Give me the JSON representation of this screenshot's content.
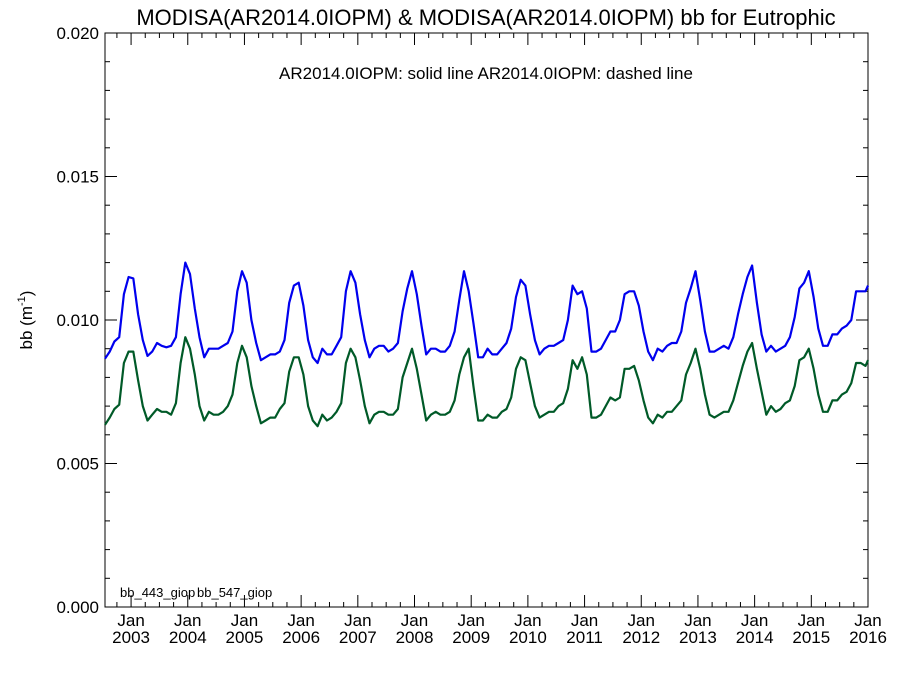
{
  "chart_data": {
    "type": "line",
    "title": "MODISA(AR2014.0IOPM) & MODISA(AR2014.0IOPM)  bb for Eutrophic",
    "subtitle": "AR2014.0IOPM: solid line   AR2014.0IOPM: dashed line",
    "ylabel": "bb (m",
    "ylabel_sup": "-1",
    "ylabel_close": ")",
    "xlabel": "",
    "ylim": [
      0.0,
      0.02
    ],
    "xlim": [
      2002.54,
      2016.0
    ],
    "yticks": [
      "0.000",
      "0.005",
      "0.010",
      "0.015",
      "0.020"
    ],
    "xticks": [
      {
        "year": 2003,
        "label1": "Jan",
        "label2": "2003"
      },
      {
        "year": 2004,
        "label1": "Jan",
        "label2": "2004"
      },
      {
        "year": 2005,
        "label1": "Jan",
        "label2": "2005"
      },
      {
        "year": 2006,
        "label1": "Jan",
        "label2": "2006"
      },
      {
        "year": 2007,
        "label1": "Jan",
        "label2": "2007"
      },
      {
        "year": 2008,
        "label1": "Jan",
        "label2": "2008"
      },
      {
        "year": 2009,
        "label1": "Jan",
        "label2": "2009"
      },
      {
        "year": 2010,
        "label1": "Jan",
        "label2": "2010"
      },
      {
        "year": 2011,
        "label1": "Jan",
        "label2": "2011"
      },
      {
        "year": 2012,
        "label1": "Jan",
        "label2": "2012"
      },
      {
        "year": 2013,
        "label1": "Jan",
        "label2": "2013"
      },
      {
        "year": 2014,
        "label1": "Jan",
        "label2": "2014"
      },
      {
        "year": 2015,
        "label1": "Jan",
        "label2": "2015"
      },
      {
        "year": 2016,
        "label1": "Jan",
        "label2": "2016"
      }
    ],
    "legend": [
      "bb_443_giop",
      "bb_547_giop"
    ],
    "legend_placement": "bottom-left",
    "grid": false,
    "start_year": 2002.54,
    "step_years": 0.08333,
    "series": [
      {
        "name": "bb_443_giop",
        "color": "#0000ee",
        "values": [
          0.00865,
          0.0089,
          0.00925,
          0.0094,
          0.0109,
          0.0115,
          0.01145,
          0.0102,
          0.0093,
          0.00875,
          0.0089,
          0.0092,
          0.0091,
          0.00905,
          0.0091,
          0.0094,
          0.0109,
          0.012,
          0.0116,
          0.0104,
          0.0094,
          0.0087,
          0.009,
          0.009,
          0.009,
          0.0091,
          0.0092,
          0.0096,
          0.011,
          0.0117,
          0.0113,
          0.01,
          0.0092,
          0.0086,
          0.0087,
          0.0088,
          0.0088,
          0.0089,
          0.0093,
          0.0106,
          0.0112,
          0.0113,
          0.0105,
          0.0093,
          0.0087,
          0.0085,
          0.009,
          0.0088,
          0.0088,
          0.0091,
          0.0094,
          0.011,
          0.0117,
          0.0113,
          0.0102,
          0.0093,
          0.0087,
          0.009,
          0.0091,
          0.0091,
          0.0089,
          0.009,
          0.0092,
          0.0103,
          0.0111,
          0.0117,
          0.0109,
          0.0098,
          0.0088,
          0.009,
          0.009,
          0.0089,
          0.0089,
          0.0091,
          0.0096,
          0.0107,
          0.0117,
          0.011,
          0.0099,
          0.0087,
          0.0087,
          0.009,
          0.0088,
          0.0088,
          0.009,
          0.0092,
          0.0097,
          0.0108,
          0.0114,
          0.0112,
          0.0102,
          0.0093,
          0.0088,
          0.009,
          0.0091,
          0.0091,
          0.0092,
          0.0093,
          0.01,
          0.0112,
          0.0109,
          0.011,
          0.0104,
          0.0089,
          0.0089,
          0.009,
          0.0093,
          0.0096,
          0.0096,
          0.01,
          0.0109,
          0.011,
          0.011,
          0.0105,
          0.0096,
          0.0089,
          0.0086,
          0.009,
          0.0089,
          0.0091,
          0.0092,
          0.0092,
          0.0096,
          0.0106,
          0.0111,
          0.0117,
          0.0107,
          0.0096,
          0.0089,
          0.0089,
          0.009,
          0.0091,
          0.009,
          0.0094,
          0.0102,
          0.0109,
          0.0115,
          0.0119,
          0.0106,
          0.0095,
          0.0089,
          0.0091,
          0.0089,
          0.009,
          0.0091,
          0.0094,
          0.0101,
          0.0111,
          0.0113,
          0.0117,
          0.0108,
          0.0097,
          0.0091,
          0.0091,
          0.0095,
          0.0095,
          0.0097,
          0.0098,
          0.01,
          0.011,
          0.011,
          0.011,
          0.0112
        ]
      },
      {
        "name": "bb_547_giop",
        "color": "#005a28",
        "values": [
          0.00635,
          0.0066,
          0.0069,
          0.00705,
          0.0085,
          0.0089,
          0.0089,
          0.0079,
          0.007,
          0.0065,
          0.0067,
          0.0069,
          0.0068,
          0.0068,
          0.0067,
          0.0071,
          0.0085,
          0.0094,
          0.009,
          0.0081,
          0.007,
          0.0065,
          0.0068,
          0.0067,
          0.0067,
          0.0068,
          0.007,
          0.0074,
          0.0085,
          0.0091,
          0.0087,
          0.0077,
          0.007,
          0.0064,
          0.0065,
          0.0066,
          0.0066,
          0.0069,
          0.0071,
          0.0082,
          0.0087,
          0.0087,
          0.0081,
          0.007,
          0.0065,
          0.0063,
          0.0067,
          0.0065,
          0.0066,
          0.0068,
          0.0071,
          0.0085,
          0.009,
          0.0087,
          0.0079,
          0.007,
          0.0064,
          0.0067,
          0.0068,
          0.0068,
          0.0067,
          0.0067,
          0.0069,
          0.008,
          0.0085,
          0.009,
          0.0083,
          0.0074,
          0.0065,
          0.0067,
          0.0068,
          0.0067,
          0.0067,
          0.0068,
          0.0072,
          0.0081,
          0.0087,
          0.009,
          0.0077,
          0.0065,
          0.0065,
          0.0067,
          0.0066,
          0.0066,
          0.0068,
          0.0069,
          0.0073,
          0.0083,
          0.0087,
          0.0086,
          0.0078,
          0.007,
          0.0066,
          0.0067,
          0.0068,
          0.0068,
          0.007,
          0.0071,
          0.0076,
          0.0086,
          0.0083,
          0.0087,
          0.0081,
          0.0066,
          0.0066,
          0.0067,
          0.007,
          0.0073,
          0.0072,
          0.0073,
          0.0083,
          0.0083,
          0.0084,
          0.0079,
          0.0072,
          0.0066,
          0.0064,
          0.0067,
          0.0066,
          0.0068,
          0.0068,
          0.007,
          0.0072,
          0.0081,
          0.0085,
          0.009,
          0.0083,
          0.0074,
          0.0067,
          0.0066,
          0.0067,
          0.0068,
          0.0068,
          0.0072,
          0.0078,
          0.0084,
          0.0089,
          0.0092,
          0.0083,
          0.0075,
          0.0067,
          0.007,
          0.0068,
          0.0069,
          0.0071,
          0.0072,
          0.0077,
          0.0086,
          0.0087,
          0.009,
          0.0083,
          0.0074,
          0.0068,
          0.0068,
          0.0072,
          0.0072,
          0.0074,
          0.0075,
          0.0078,
          0.0085,
          0.0085,
          0.0084,
          0.0086
        ]
      }
    ]
  }
}
